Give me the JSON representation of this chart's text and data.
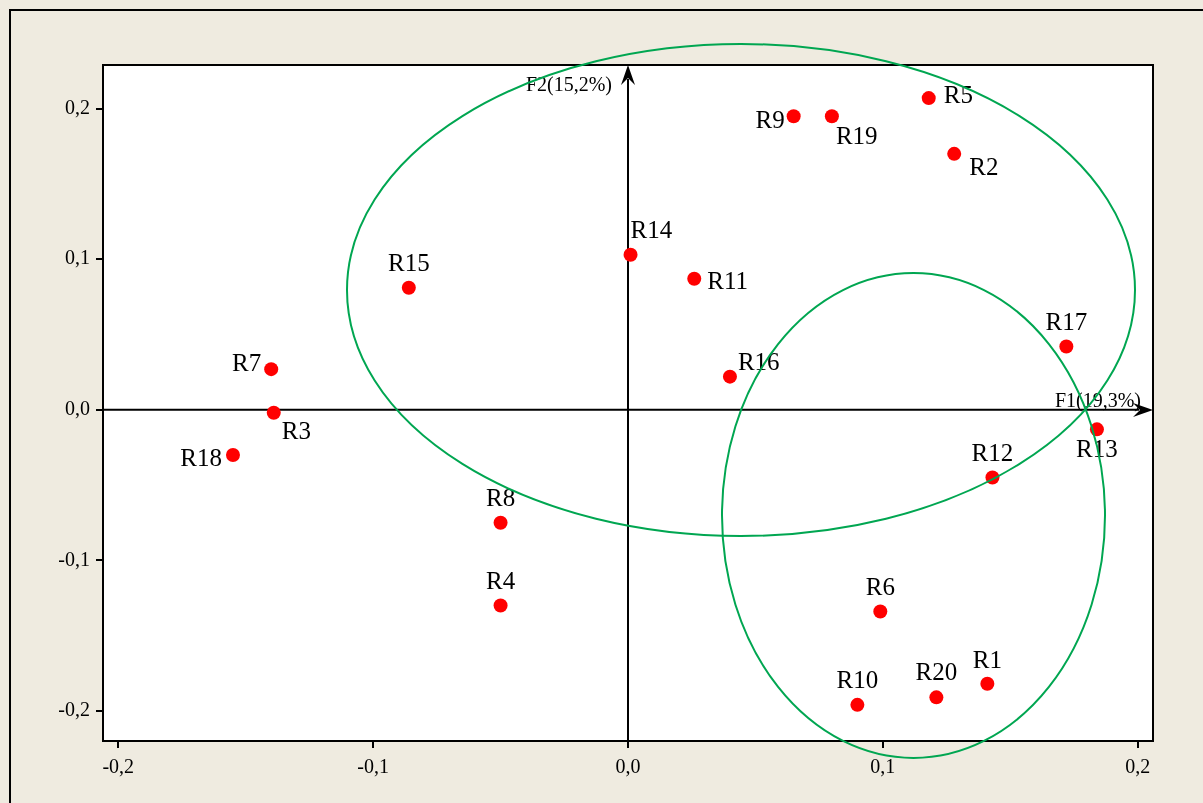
{
  "chart_data": {
    "type": "scatter",
    "marker": "circle",
    "xlim": [
      -0.206,
      0.206
    ],
    "ylim": [
      -0.22,
      0.229
    ],
    "xticks": [
      {
        "value": -0.2,
        "label": "-0,2"
      },
      {
        "value": -0.1,
        "label": "-0,1"
      },
      {
        "value": 0,
        "label": "0,0"
      },
      {
        "value": 0.1,
        "label": "0,1"
      },
      {
        "value": 0.2,
        "label": "0,2"
      }
    ],
    "yticks": [
      {
        "value": -0.2,
        "label": "-0,2"
      },
      {
        "value": -0.1,
        "label": "-0,1"
      },
      {
        "value": 0,
        "label": "0,0"
      },
      {
        "value": 0.1,
        "label": "0,1"
      },
      {
        "value": 0.2,
        "label": "0,2"
      }
    ],
    "ref_lines": [
      {
        "axis": "x",
        "value": 0,
        "label": "F2(15,2%)",
        "color": "#000000"
      },
      {
        "axis": "y",
        "value": 0,
        "label": "F1(19,3%)",
        "color": "#000000"
      }
    ],
    "series": [
      {
        "name": "R1",
        "color": "#ff0000",
        "x": [
          0.141
        ],
        "values": [
          -0.182
        ]
      },
      {
        "name": "R2",
        "color": "#ff0000",
        "x": [
          0.128
        ],
        "values": [
          0.17
        ]
      },
      {
        "name": "R3",
        "color": "#ff0000",
        "x": [
          -0.139
        ],
        "values": [
          -0.002
        ]
      },
      {
        "name": "R4",
        "color": "#ff0000",
        "x": [
          -0.05
        ],
        "values": [
          -0.13
        ]
      },
      {
        "name": "R5",
        "color": "#ff0000",
        "x": [
          0.118
        ],
        "values": [
          0.207
        ]
      },
      {
        "name": "R6",
        "color": "#ff0000",
        "x": [
          0.099
        ],
        "values": [
          -0.134
        ]
      },
      {
        "name": "R7",
        "color": "#ff0000",
        "x": [
          -0.14
        ],
        "values": [
          0.027
        ]
      },
      {
        "name": "R8",
        "color": "#ff0000",
        "x": [
          -0.05
        ],
        "values": [
          -0.075
        ]
      },
      {
        "name": "R9",
        "color": "#ff0000",
        "x": [
          0.065
        ],
        "values": [
          0.195
        ]
      },
      {
        "name": "R10",
        "color": "#ff0000",
        "x": [
          0.09
        ],
        "values": [
          -0.196
        ]
      },
      {
        "name": "R11",
        "color": "#ff0000",
        "x": [
          0.026
        ],
        "values": [
          0.087
        ]
      },
      {
        "name": "R12",
        "color": "#ff0000",
        "x": [
          0.143
        ],
        "values": [
          -0.045
        ]
      },
      {
        "name": "R13",
        "color": "#ff0000",
        "x": [
          0.184
        ],
        "values": [
          -0.013
        ]
      },
      {
        "name": "R14",
        "color": "#ff0000",
        "x": [
          0.001
        ],
        "values": [
          0.103
        ]
      },
      {
        "name": "R15",
        "color": "#ff0000",
        "x": [
          -0.086
        ],
        "values": [
          0.081
        ]
      },
      {
        "name": "R16",
        "color": "#ff0000",
        "x": [
          0.04
        ],
        "values": [
          0.022
        ]
      },
      {
        "name": "R17",
        "color": "#ff0000",
        "x": [
          0.172
        ],
        "values": [
          0.042
        ]
      },
      {
        "name": "R18",
        "color": "#ff0000",
        "x": [
          -0.155
        ],
        "values": [
          -0.03
        ]
      },
      {
        "name": "R19",
        "color": "#ff0000",
        "x": [
          0.08
        ],
        "values": [
          0.195
        ]
      },
      {
        "name": "R20",
        "color": "#ff0000",
        "x": [
          0.121
        ],
        "values": [
          -0.191
        ]
      }
    ]
  }
}
